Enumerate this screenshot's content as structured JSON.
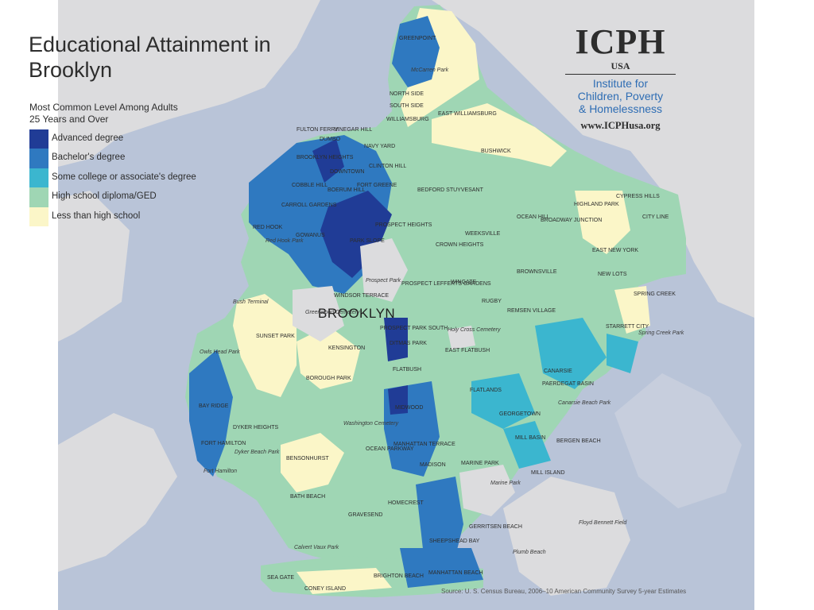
{
  "map": {
    "title": "Educational Attainment in Brooklyn",
    "subtitle": "Most Common Level Among Adults 25 Years and Over",
    "borough": "BROOKLYN",
    "source": "Source: U. S. Census Bureau, 2006–10 American Community Survey 5-year Estimates",
    "colors": {
      "water": "#b9c4d8",
      "other_land": "#dcdcde",
      "park": "#e8e8ea",
      "advanced": "#203c96",
      "bachelor": "#2f79c0",
      "some_college": "#3bb6cf",
      "high_school": "#9fd6b4",
      "less_than_hs": "#fbf6c8"
    },
    "legend": [
      {
        "label": "Advanced degree",
        "color": "#203c96"
      },
      {
        "label": "Bachelor's degree",
        "color": "#2f79c0"
      },
      {
        "label": "Some college or associate's degree",
        "color": "#3bb6cf"
      },
      {
        "label": "High school diploma/GED",
        "color": "#9fd6b4"
      },
      {
        "label": "Less than high school",
        "color": "#fbf6c8"
      }
    ]
  },
  "logo": {
    "main": "ICPH",
    "country": "USA",
    "line1": "Institute for",
    "line2": "Children, Poverty",
    "line3": "& Homelessness",
    "url": "www.ICPHusa.org"
  },
  "neighborhoods": [
    "GREENPOINT",
    "NORTH SIDE",
    "SOUTH SIDE",
    "WILLIAMSBURG",
    "EAST WILLIAMSBURG",
    "FULTON FERRY",
    "VINEGAR HILL",
    "DUMBO",
    "NAVY YARD",
    "BROOKLYN HEIGHTS",
    "DOWNTOWN",
    "BOERUM HILL",
    "FORT GREENE",
    "CLINTON HILL",
    "COBBLE HILL",
    "CARROLL GARDENS",
    "RED HOOK",
    "GOWANUS",
    "PARK SLOPE",
    "PROSPECT HEIGHTS",
    "BEDFORD STUYVESANT",
    "BUSHWICK",
    "HIGHLAND PARK",
    "CYPRESS HILLS",
    "CITY LINE",
    "OCEAN HILL",
    "BROADWAY JUNCTION",
    "WEEKSVILLE",
    "CROWN HEIGHTS",
    "EAST NEW YORK",
    "BROWNSVILLE",
    "NEW LOTS",
    "WINGATE",
    "PROSPECT LEFFERTS GARDENS",
    "WINDSOR TERRACE",
    "RUGBY",
    "REMSEN VILLAGE",
    "SPRING CREEK",
    "STARRETT CITY",
    "SUNSET PARK",
    "KENSINGTON",
    "PROSPECT PARK SOUTH",
    "DITMAS PARK",
    "EAST FLATBUSH",
    "FLATBUSH",
    "CANARSIE",
    "PAERDEGAT BASIN",
    "BOROUGH PARK",
    "FLATLANDS",
    "MIDWOOD",
    "GEORGETOWN",
    "BAY RIDGE",
    "DYKER HEIGHTS",
    "FORT HAMILTON",
    "BENSONHURST",
    "OCEAN PARKWAY",
    "MANHATTAN TERRACE",
    "MADISON",
    "MARINE PARK",
    "MILL BASIN",
    "BERGEN BEACH",
    "MILL ISLAND",
    "BATH BEACH",
    "GRAVESEND",
    "HOMECREST",
    "GERRITSEN BEACH",
    "SHEEPSHEAD BAY",
    "SEA GATE",
    "CONEY ISLAND",
    "BRIGHTON BEACH",
    "MANHATTAN BEACH"
  ],
  "places": [
    "McCarren Park",
    "Red Hook Park",
    "Prospect Park",
    "Bush Terminal",
    "Greenwood Cemetery",
    "Holy Cross Cemetery",
    "Owls Head Park",
    "Spring Creek Park",
    "Canarsie Beach Park",
    "Washington Cemetery",
    "Dyker Beach Park",
    "Fort Hamilton",
    "Marine Park",
    "Floyd Bennett Field",
    "Plumb Beach",
    "Calvert Vaux Park"
  ]
}
